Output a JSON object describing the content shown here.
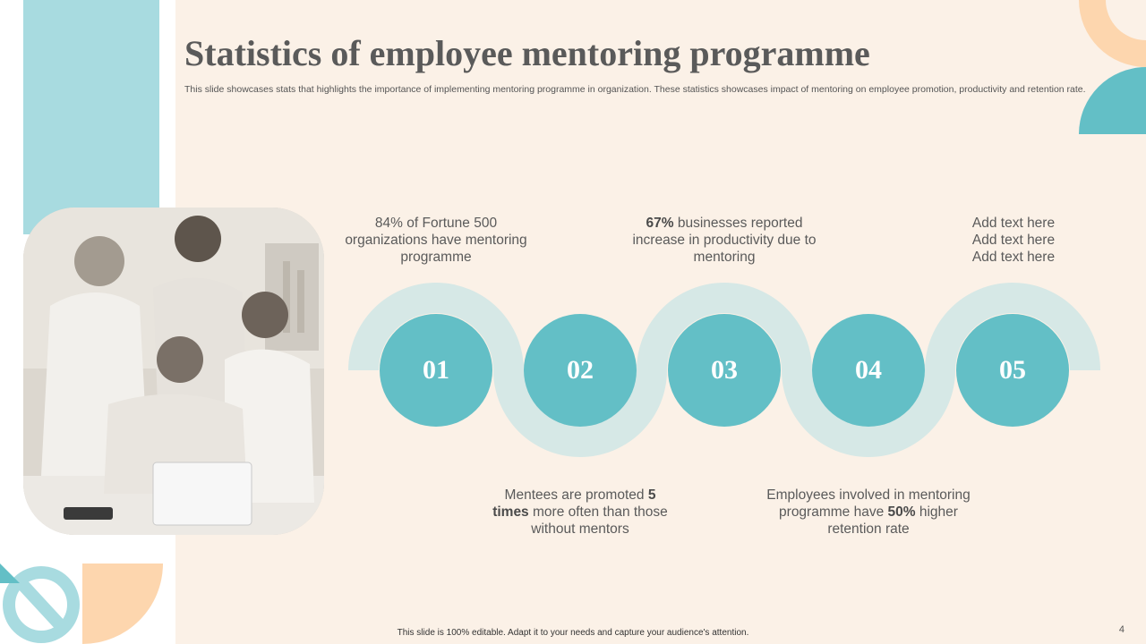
{
  "header": {
    "title": "Statistics of employee mentoring programme",
    "subtitle": "This slide showcases stats that highlights the importance of implementing mentoring programme in organization. These statistics showcases impact of mentoring on employee promotion, productivity and retention rate."
  },
  "steps": [
    {
      "number": "01",
      "text_pre": "84% of Fortune 500 organizations have mentoring programme"
    },
    {
      "number": "02",
      "text_pre": "Mentees are promoted ",
      "text_bold": "5 times",
      "text_post": " more often than those without mentors"
    },
    {
      "number": "03",
      "text_bold": "67%",
      "text_post": " businesses reported increase in productivity  due to mentoring"
    },
    {
      "number": "04",
      "text_pre": "Employees involved in mentoring programme have ",
      "text_bold": "50%",
      "text_post": " higher retention rate"
    },
    {
      "number": "05",
      "lines": [
        "Add text here",
        "Add text here",
        "Add text here"
      ]
    }
  ],
  "footer": {
    "note": "This slide is 100% editable. Adapt it to your needs and capture your audience's attention.",
    "page_number": "4"
  },
  "colors": {
    "teal": "#63bfc6",
    "light_teal": "#a8dbe0",
    "pale_teal": "#d6e8e6",
    "peach": "#fdd6ae",
    "cream": "#fbf1e7"
  }
}
